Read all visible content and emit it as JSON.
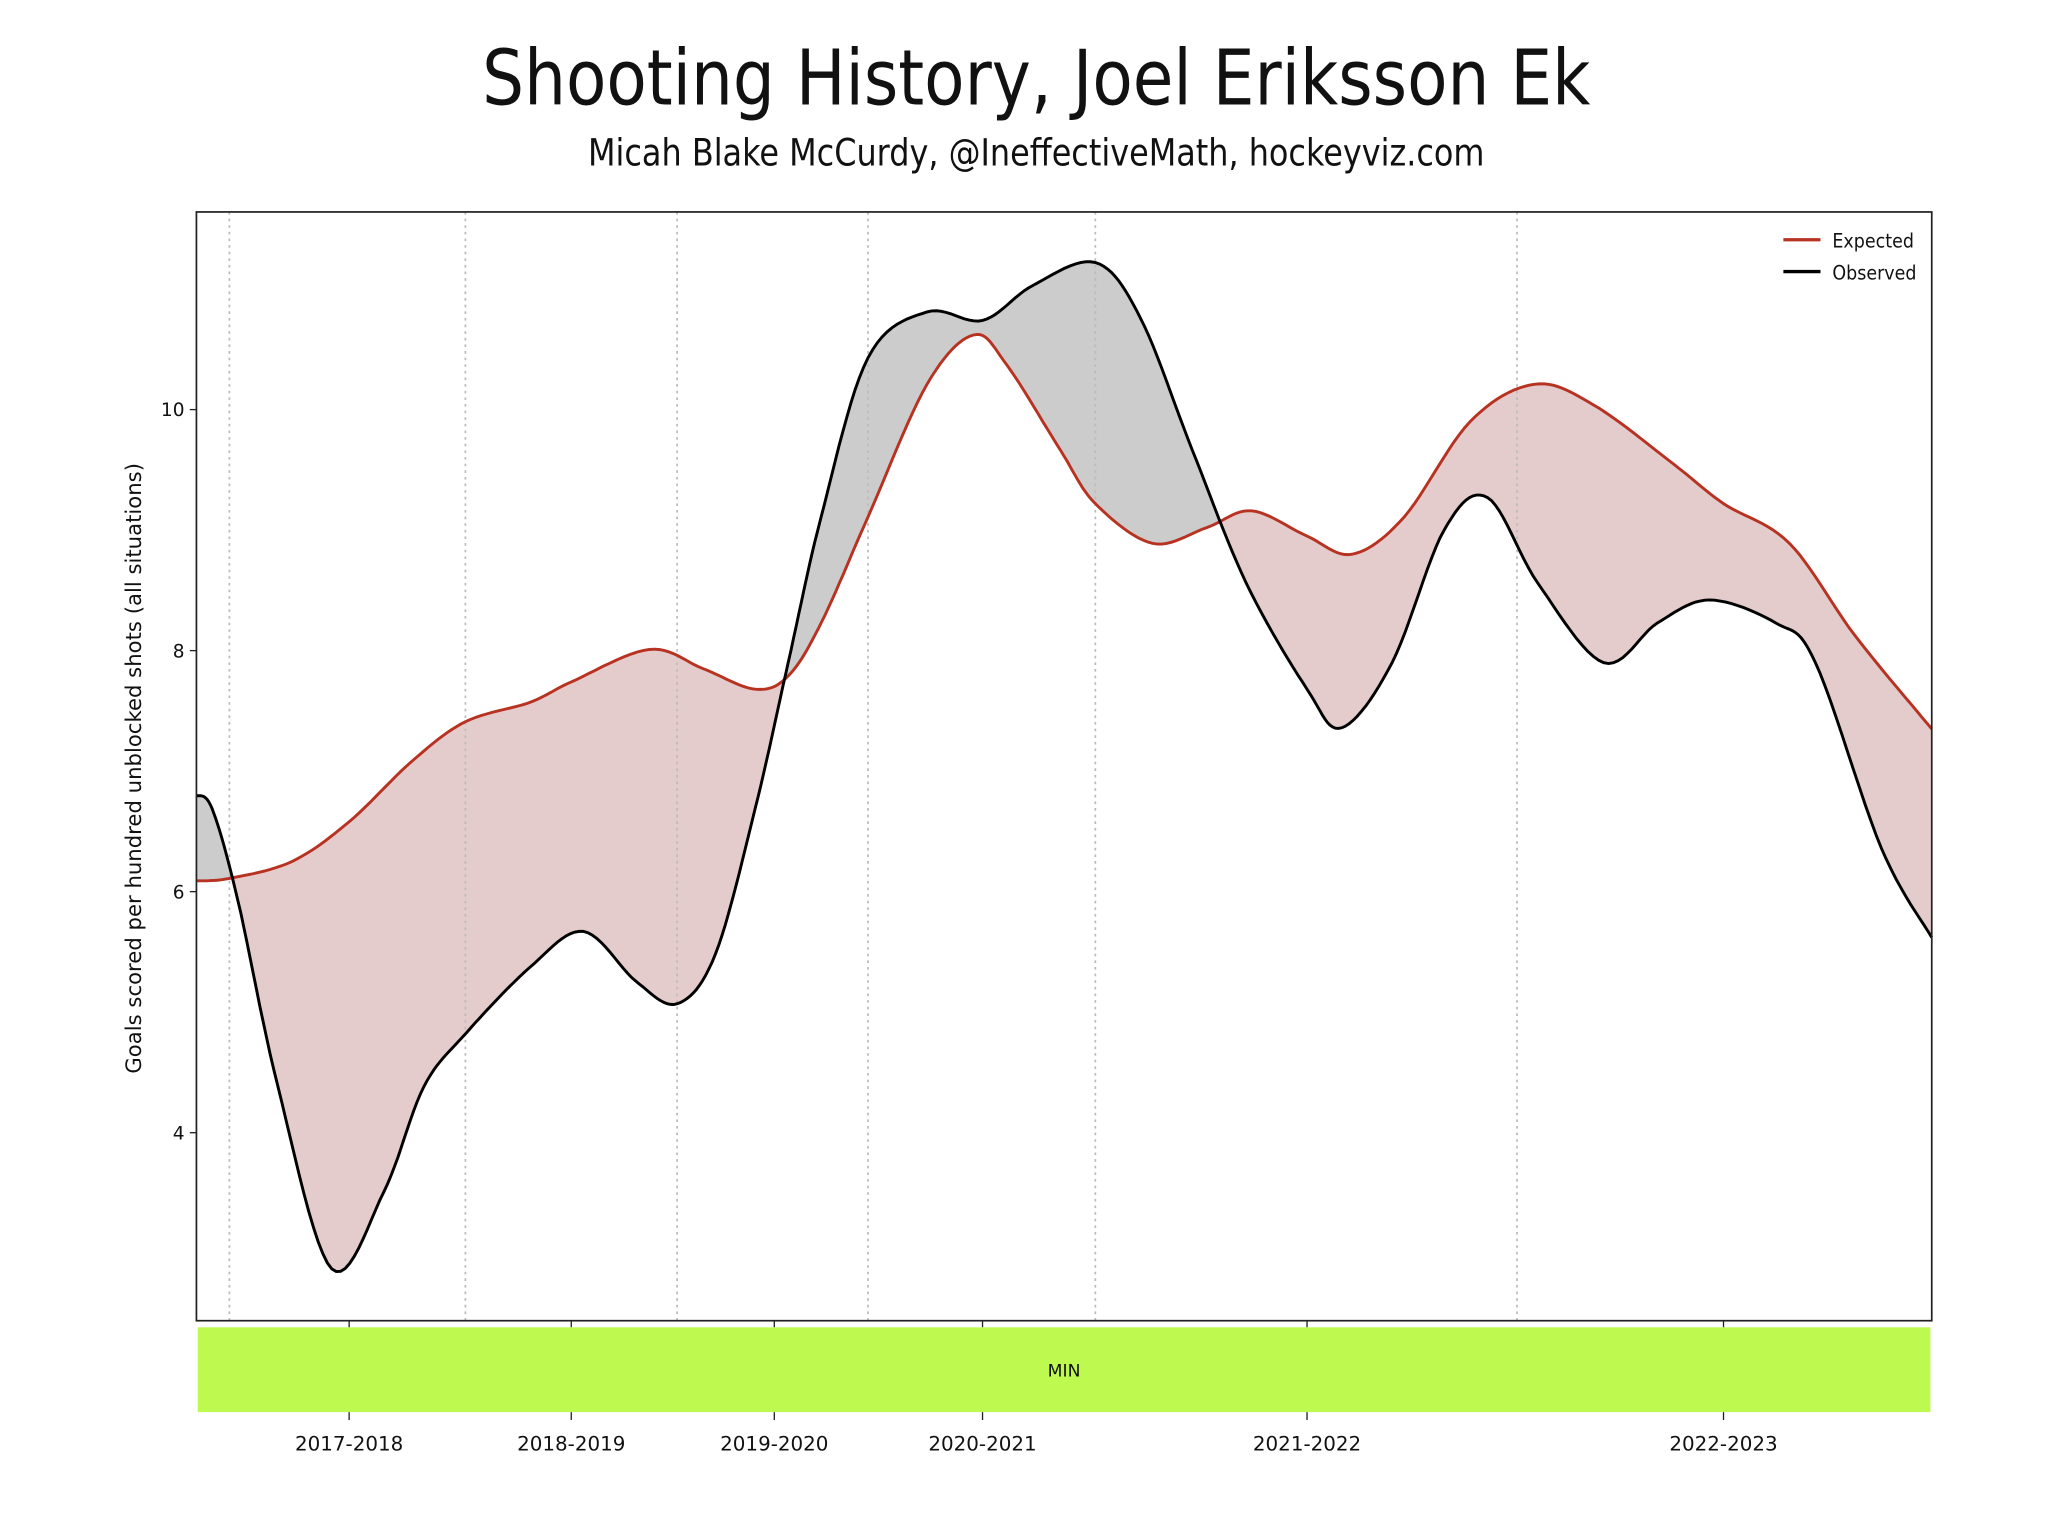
{
  "chart_data": {
    "type": "line",
    "title": "Shooting History, Joel Eriksson Ek",
    "subtitle": "Micah Blake McCurdy, @IneffectiveMath, hockeyviz.com",
    "ylabel": "Goals scored per hundred unblocked shots (all situations)",
    "xlabel": "",
    "ylim": [
      2.44,
      11.64
    ],
    "xlim": [
      0,
      100
    ],
    "yticks": [
      4,
      6,
      8,
      10
    ],
    "xticks": [
      {
        "x": 8.8,
        "label": "2017-2018"
      },
      {
        "x": 21.6,
        "label": "2018-2019"
      },
      {
        "x": 33.3,
        "label": "2019-2020"
      },
      {
        "x": 45.3,
        "label": "2020-2021"
      },
      {
        "x": 64.0,
        "label": "2021-2022"
      },
      {
        "x": 88.0,
        "label": "2022-2023"
      }
    ],
    "season_boundaries": [
      1.9,
      15.5,
      27.7,
      38.7,
      51.8,
      76.1
    ],
    "team_band": {
      "label": "MIN",
      "color": "#bdf94f"
    },
    "grid": "vertical dotted at season boundaries",
    "legend": {
      "placement": "top-right",
      "entries": [
        "Expected",
        "Observed"
      ]
    },
    "series": [
      {
        "name": "Expected",
        "color": "#b83222",
        "x": [
          0,
          1.9,
          5.5,
          8.8,
          12.4,
          15.5,
          19.2,
          21.6,
          26.1,
          29.2,
          32.2,
          34.1,
          36.0,
          38.7,
          42.1,
          44.8,
          46.7,
          49.8,
          51.8,
          55.1,
          58.2,
          60.8,
          64.0,
          66.6,
          69.6,
          73.4,
          77.1,
          80.5,
          85.1,
          88.0,
          91.8,
          95.6,
          100
        ],
        "y": [
          6.09,
          6.11,
          6.25,
          6.58,
          7.08,
          7.41,
          7.57,
          7.74,
          8.01,
          7.85,
          7.68,
          7.79,
          8.23,
          9.11,
          10.21,
          10.62,
          10.37,
          9.66,
          9.22,
          8.89,
          9.02,
          9.16,
          8.95,
          8.8,
          9.11,
          9.9,
          10.21,
          10.04,
          9.55,
          9.22,
          8.89,
          8.12,
          7.35
        ]
      },
      {
        "name": "Observed",
        "color": "#000000",
        "x": [
          0,
          0.9,
          2.4,
          4.7,
          7.8,
          10.8,
          13.1,
          15.5,
          19.2,
          22.3,
          25.3,
          27.7,
          29.9,
          32.2,
          34.1,
          36.0,
          38.7,
          42.1,
          45.3,
          48.2,
          51.8,
          54.4,
          57.4,
          60.5,
          64.0,
          66.0,
          68.9,
          71.9,
          74.4,
          77.3,
          81.1,
          84.2,
          87.2,
          91.0,
          93.3,
          97.1,
          100
        ],
        "y": [
          6.8,
          6.69,
          5.92,
          4.38,
          2.87,
          3.51,
          4.38,
          4.82,
          5.37,
          5.67,
          5.26,
          5.07,
          5.48,
          6.69,
          7.9,
          9.11,
          10.43,
          10.81,
          10.74,
          11.03,
          11.22,
          10.76,
          9.66,
          8.56,
          7.68,
          7.36,
          7.9,
          9.0,
          9.27,
          8.56,
          7.9,
          8.23,
          8.42,
          8.23,
          7.9,
          6.36,
          5.62
        ]
      }
    ],
    "fill_colors": {
      "expected_above": "#e5cccc",
      "observed_above": "#cccccc"
    }
  }
}
